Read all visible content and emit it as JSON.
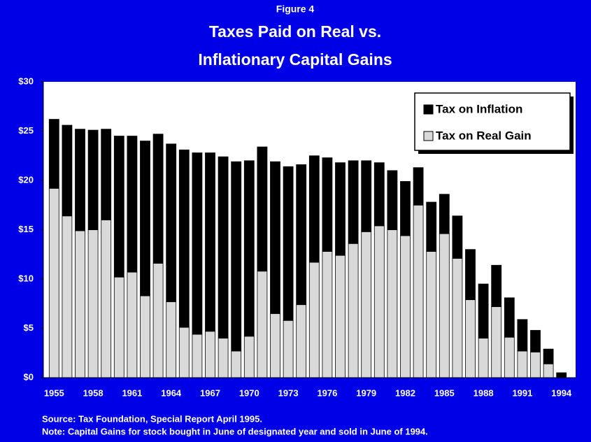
{
  "chart_data": {
    "type": "stacked_bar",
    "figure_label": "Figure 4",
    "title": [
      "Taxes Paid on Real vs.",
      "Inflationary Capital Gains"
    ],
    "notes": [
      "Source:  Tax Foundation, Special Report April 1995.",
      "Note:  Capital Gains for stock bought in June of designated year and sold in June of 1994."
    ],
    "categories": [
      "1955",
      null,
      null,
      "1958",
      null,
      null,
      "1961",
      null,
      null,
      "1964",
      null,
      null,
      "1967",
      null,
      null,
      "1970",
      null,
      null,
      "1973",
      null,
      null,
      "1976",
      null,
      null,
      "1979",
      null,
      null,
      "1982",
      null,
      null,
      "1985",
      null,
      null,
      "1988",
      null,
      null,
      "1991",
      null,
      null,
      "1994"
    ],
    "series": [
      {
        "name": "Tax on Real Gain",
        "color": "#d9d9d9",
        "values": [
          19.2,
          16.4,
          14.9,
          15.0,
          16.0,
          10.2,
          10.7,
          8.3,
          11.6,
          7.7,
          5.1,
          4.4,
          4.7,
          4.0,
          2.7,
          4.2,
          10.8,
          6.5,
          5.8,
          7.4,
          11.7,
          12.8,
          12.4,
          13.6,
          14.8,
          15.4,
          15.0,
          14.4,
          17.5,
          12.8,
          14.6,
          12.1,
          7.9,
          4.0,
          7.2,
          4.1,
          2.7,
          2.6,
          1.4,
          0
        ]
      },
      {
        "name": "Tax on Inflation",
        "color": "#000000",
        "values": [
          7.0,
          9.2,
          10.3,
          10.1,
          9.2,
          14.3,
          13.8,
          15.7,
          13.1,
          16.0,
          18.0,
          18.4,
          18.1,
          18.4,
          19.2,
          17.8,
          12.6,
          15.4,
          15.6,
          14.2,
          10.8,
          9.5,
          9.4,
          8.4,
          7.2,
          6.4,
          6.0,
          5.5,
          3.8,
          5.0,
          4.0,
          4.3,
          5.1,
          5.5,
          4.2,
          4.0,
          3.2,
          2.2,
          1.5,
          0.5
        ]
      }
    ],
    "ylim": [
      0,
      30
    ],
    "yticks": [
      {
        "value": 0,
        "label": "$0"
      },
      {
        "value": 5,
        "label": "$5"
      },
      {
        "value": 10,
        "label": "$10"
      },
      {
        "value": 15,
        "label": "$15"
      },
      {
        "value": 20,
        "label": "$20"
      },
      {
        "value": 25,
        "label": "$25"
      },
      {
        "value": 30,
        "label": "$30"
      }
    ],
    "legend": "upper right"
  }
}
